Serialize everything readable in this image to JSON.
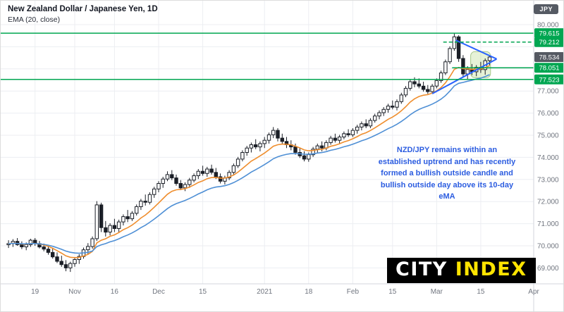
{
  "header": {
    "title": "New Zealand Dollar / Japanese Yen, 1D",
    "indicator_label": "EMA (20, close)"
  },
  "axis_badge": "JPY",
  "annotation": {
    "text": "NZD/JPY remains within an established uptrend and has recently formed a bullish outside candle and bullish outside day above its 10-day eMA",
    "color": "#2b5ce0"
  },
  "logo": {
    "city": "CITY",
    "index": "INDEX",
    "bg": "#000000",
    "city_color": "#ffffff",
    "index_color": "#ffe400"
  },
  "chart_data": {
    "type": "candlestick",
    "symbol": "NZD/JPY",
    "timeframe": "1D",
    "title": "New Zealand Dollar / Japanese Yen, 1D",
    "ylim": [
      68.3,
      81.1
    ],
    "grid": true,
    "grid_prices": [
      69,
      70,
      71,
      72,
      73,
      74,
      75,
      76,
      77,
      78,
      79,
      80
    ],
    "price_ticks": [
      {
        "price": 80.0,
        "label": "80.000"
      },
      {
        "price": 77.0,
        "label": "77.000"
      },
      {
        "price": 76.0,
        "label": "76.000"
      },
      {
        "price": 75.0,
        "label": "75.000"
      },
      {
        "price": 74.0,
        "label": "74.000"
      },
      {
        "price": 73.0,
        "label": "73.000"
      },
      {
        "price": 72.0,
        "label": "72.000"
      },
      {
        "price": 71.0,
        "label": "71.000"
      },
      {
        "price": 70.0,
        "label": "70.000"
      },
      {
        "price": 69.0,
        "label": "69.000"
      }
    ],
    "time_ticks": [
      {
        "index": 6,
        "label": "19"
      },
      {
        "index": 15,
        "label": "Nov"
      },
      {
        "index": 24,
        "label": "16"
      },
      {
        "index": 34,
        "label": "Dec"
      },
      {
        "index": 44,
        "label": "15"
      },
      {
        "index": 58,
        "label": "2021"
      },
      {
        "index": 68,
        "label": "18"
      },
      {
        "index": 78,
        "label": "Feb"
      },
      {
        "index": 87,
        "label": "15"
      },
      {
        "index": 97,
        "label": "Mar"
      },
      {
        "index": 107,
        "label": "15"
      },
      {
        "index": 119,
        "label": "Apr"
      }
    ],
    "last_price": {
      "value": 78.534,
      "label": "78.534"
    },
    "level_color": "#00a651",
    "levels": [
      {
        "price": 79.615,
        "label": "79.615",
        "style": "solid",
        "extend": "full"
      },
      {
        "price": 79.212,
        "label": "79.212",
        "style": "dashed",
        "from_bar": 99
      },
      {
        "price": 78.051,
        "label": "78.051",
        "style": "solid",
        "from_bar": 101
      },
      {
        "price": 77.523,
        "label": "77.523",
        "style": "solid",
        "extend": "full"
      }
    ],
    "candle_colors": {
      "up_fill": "#ffffff",
      "down_fill": "#1b1f27",
      "border": "#1b1f27"
    },
    "indicators": [
      {
        "label": "EMA 10",
        "period": 10,
        "color": "#ef8e2e"
      },
      {
        "label": "EMA 20",
        "period": 20,
        "color": "#4e8fd5"
      }
    ],
    "drawings": {
      "color": "#2962ff",
      "trendlines": [
        {
          "from_bar": 101.3,
          "from_price": 79.3,
          "to_bar": 110.6,
          "to_price": 78.45
        },
        {
          "from_bar": 96.0,
          "from_price": 76.88,
          "to_bar": 110.6,
          "to_price": 78.45
        }
      ]
    },
    "highlight": {
      "from_bar": 105.2,
      "to_bar": 109.7,
      "top_price": 78.78,
      "bottom_price": 77.6,
      "fill": "rgba(139,195,74,0.22)",
      "stroke": "rgba(104,159,56,0.55)"
    },
    "candles": [
      [
        70.05,
        70.25,
        69.9,
        70.1
      ],
      [
        70.1,
        70.3,
        69.95,
        70.2
      ],
      [
        70.2,
        70.35,
        70.0,
        70.05
      ],
      [
        70.05,
        70.2,
        69.85,
        69.95
      ],
      [
        69.95,
        70.15,
        69.8,
        70.05
      ],
      [
        70.05,
        70.32,
        69.95,
        70.25
      ],
      [
        70.25,
        70.35,
        70.0,
        70.1
      ],
      [
        70.1,
        70.22,
        69.88,
        69.95
      ],
      [
        69.95,
        70.1,
        69.75,
        69.85
      ],
      [
        69.85,
        70.0,
        69.6,
        69.7
      ],
      [
        69.7,
        69.88,
        69.42,
        69.5
      ],
      [
        69.5,
        69.7,
        69.22,
        69.3
      ],
      [
        69.3,
        69.55,
        69.05,
        69.15
      ],
      [
        69.15,
        69.35,
        68.85,
        69.0
      ],
      [
        69.0,
        69.28,
        68.82,
        69.2
      ],
      [
        69.2,
        69.48,
        69.05,
        69.38
      ],
      [
        69.38,
        69.62,
        69.18,
        69.52
      ],
      [
        69.52,
        69.92,
        69.42,
        69.82
      ],
      [
        69.82,
        70.12,
        69.62,
        69.97
      ],
      [
        69.97,
        70.42,
        69.87,
        70.32
      ],
      [
        70.32,
        72.02,
        70.22,
        71.85
      ],
      [
        71.85,
        71.95,
        70.62,
        70.82
      ],
      [
        70.82,
        71.12,
        70.42,
        70.62
      ],
      [
        70.62,
        71.02,
        70.47,
        70.92
      ],
      [
        70.92,
        71.22,
        70.62,
        70.78
      ],
      [
        70.78,
        71.18,
        70.58,
        71.08
      ],
      [
        71.08,
        71.42,
        70.92,
        71.32
      ],
      [
        71.32,
        71.62,
        71.07,
        71.22
      ],
      [
        71.22,
        71.57,
        71.12,
        71.47
      ],
      [
        71.47,
        71.87,
        71.37,
        71.77
      ],
      [
        71.77,
        72.12,
        71.62,
        72.02
      ],
      [
        72.02,
        72.32,
        71.82,
        71.97
      ],
      [
        71.97,
        72.42,
        71.87,
        72.32
      ],
      [
        72.32,
        72.67,
        72.17,
        72.57
      ],
      [
        72.57,
        72.92,
        72.42,
        72.82
      ],
      [
        72.82,
        73.12,
        72.62,
        73.02
      ],
      [
        73.02,
        73.37,
        72.92,
        73.22
      ],
      [
        73.22,
        73.42,
        72.97,
        73.07
      ],
      [
        73.07,
        73.22,
        72.72,
        72.82
      ],
      [
        72.82,
        72.97,
        72.52,
        72.62
      ],
      [
        72.62,
        72.87,
        72.47,
        72.77
      ],
      [
        72.77,
        73.07,
        72.62,
        72.97
      ],
      [
        72.97,
        73.27,
        72.87,
        73.17
      ],
      [
        73.17,
        73.47,
        73.02,
        73.37
      ],
      [
        73.37,
        73.62,
        73.17,
        73.27
      ],
      [
        73.27,
        73.57,
        73.12,
        73.47
      ],
      [
        73.47,
        73.67,
        73.22,
        73.32
      ],
      [
        73.32,
        73.52,
        73.02,
        73.12
      ],
      [
        73.12,
        73.27,
        72.82,
        72.92
      ],
      [
        72.92,
        73.17,
        72.77,
        73.07
      ],
      [
        73.07,
        73.42,
        72.97,
        73.32
      ],
      [
        73.32,
        73.72,
        73.22,
        73.62
      ],
      [
        73.62,
        74.02,
        73.52,
        73.92
      ],
      [
        73.92,
        74.32,
        73.82,
        74.22
      ],
      [
        74.22,
        74.52,
        74.07,
        74.42
      ],
      [
        74.42,
        74.67,
        74.22,
        74.57
      ],
      [
        74.57,
        74.82,
        74.37,
        74.47
      ],
      [
        74.47,
        74.72,
        74.27,
        74.62
      ],
      [
        74.62,
        74.92,
        74.42,
        74.77
      ],
      [
        74.77,
        75.12,
        74.62,
        75.02
      ],
      [
        75.02,
        75.37,
        74.87,
        75.22
      ],
      [
        75.22,
        75.32,
        74.72,
        74.87
      ],
      [
        74.87,
        75.07,
        74.57,
        74.72
      ],
      [
        74.72,
        74.92,
        74.42,
        74.57
      ],
      [
        74.57,
        74.77,
        74.32,
        74.47
      ],
      [
        74.47,
        74.62,
        74.12,
        74.22
      ],
      [
        74.22,
        74.42,
        73.97,
        74.07
      ],
      [
        74.07,
        74.27,
        73.82,
        73.92
      ],
      [
        73.92,
        74.22,
        73.8,
        74.12
      ],
      [
        74.12,
        74.47,
        74.02,
        74.37
      ],
      [
        74.37,
        74.62,
        74.22,
        74.52
      ],
      [
        74.52,
        74.72,
        74.27,
        74.42
      ],
      [
        74.42,
        74.77,
        74.32,
        74.67
      ],
      [
        74.67,
        74.97,
        74.57,
        74.87
      ],
      [
        74.87,
        75.07,
        74.67,
        74.77
      ],
      [
        74.77,
        75.02,
        74.62,
        74.92
      ],
      [
        74.92,
        75.17,
        74.82,
        75.07
      ],
      [
        75.07,
        75.27,
        74.92,
        75.02
      ],
      [
        75.02,
        75.32,
        74.92,
        75.22
      ],
      [
        75.22,
        75.47,
        75.07,
        75.37
      ],
      [
        75.37,
        75.62,
        75.22,
        75.52
      ],
      [
        75.52,
        75.72,
        75.32,
        75.42
      ],
      [
        75.42,
        75.77,
        75.32,
        75.67
      ],
      [
        75.67,
        75.97,
        75.57,
        75.87
      ],
      [
        75.87,
        76.12,
        75.72,
        76.02
      ],
      [
        76.02,
        76.27,
        75.87,
        76.17
      ],
      [
        76.17,
        76.42,
        76.02,
        76.32
      ],
      [
        76.32,
        76.57,
        76.17,
        76.27
      ],
      [
        76.27,
        76.62,
        76.12,
        76.52
      ],
      [
        76.52,
        76.92,
        76.42,
        76.82
      ],
      [
        76.82,
        77.22,
        76.72,
        77.12
      ],
      [
        77.12,
        77.52,
        77.02,
        77.42
      ],
      [
        77.42,
        77.62,
        77.17,
        77.32
      ],
      [
        77.32,
        77.57,
        77.12,
        77.22
      ],
      [
        77.22,
        77.42,
        76.97,
        77.07
      ],
      [
        77.07,
        77.27,
        76.87,
        76.97
      ],
      [
        76.97,
        77.32,
        76.92,
        77.22
      ],
      [
        77.22,
        77.57,
        77.12,
        77.47
      ],
      [
        77.47,
        77.92,
        77.37,
        77.82
      ],
      [
        77.82,
        78.42,
        77.72,
        78.32
      ],
      [
        78.32,
        79.02,
        78.22,
        78.92
      ],
      [
        78.92,
        79.615,
        78.82,
        79.45
      ],
      [
        79.45,
        79.52,
        78.32,
        78.47
      ],
      [
        78.47,
        78.62,
        77.62,
        77.77
      ],
      [
        77.77,
        78.12,
        77.523,
        77.97
      ],
      [
        77.97,
        78.22,
        77.72,
        77.87
      ],
      [
        77.87,
        78.17,
        77.67,
        78.07
      ],
      [
        78.07,
        78.32,
        77.82,
        77.97
      ],
      [
        77.97,
        78.47,
        77.74,
        78.37
      ],
      [
        78.37,
        78.62,
        78.17,
        78.534
      ]
    ]
  }
}
